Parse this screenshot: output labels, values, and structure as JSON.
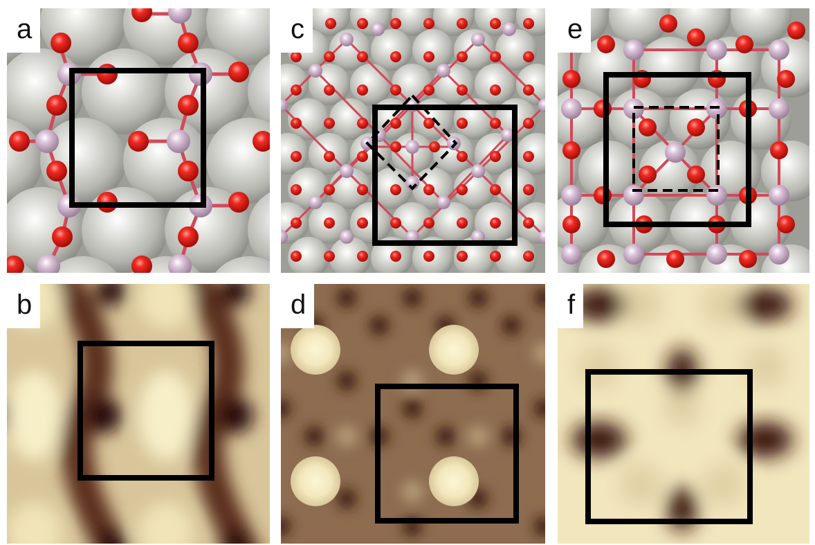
{
  "panels": [
    {
      "id": "a",
      "label": "a",
      "kind": "atomic-model"
    },
    {
      "id": "b",
      "label": "b",
      "kind": "simulated-image"
    },
    {
      "id": "c",
      "label": "c",
      "kind": "atomic-model"
    },
    {
      "id": "d",
      "label": "d",
      "kind": "simulated-image"
    },
    {
      "id": "e",
      "label": "e",
      "kind": "atomic-model"
    },
    {
      "id": "f",
      "label": "f",
      "kind": "simulated-image"
    }
  ],
  "colors": {
    "substrate_atom": "#b9b9b3",
    "oxygen_atom": "#e0201c",
    "metal_atom": "#c9a9c4",
    "bond": "#d04a5a",
    "frame": "#000000",
    "image_bright": "#f7efc8",
    "image_mid": "#cbb98f",
    "image_dark": "#3c1a12"
  }
}
